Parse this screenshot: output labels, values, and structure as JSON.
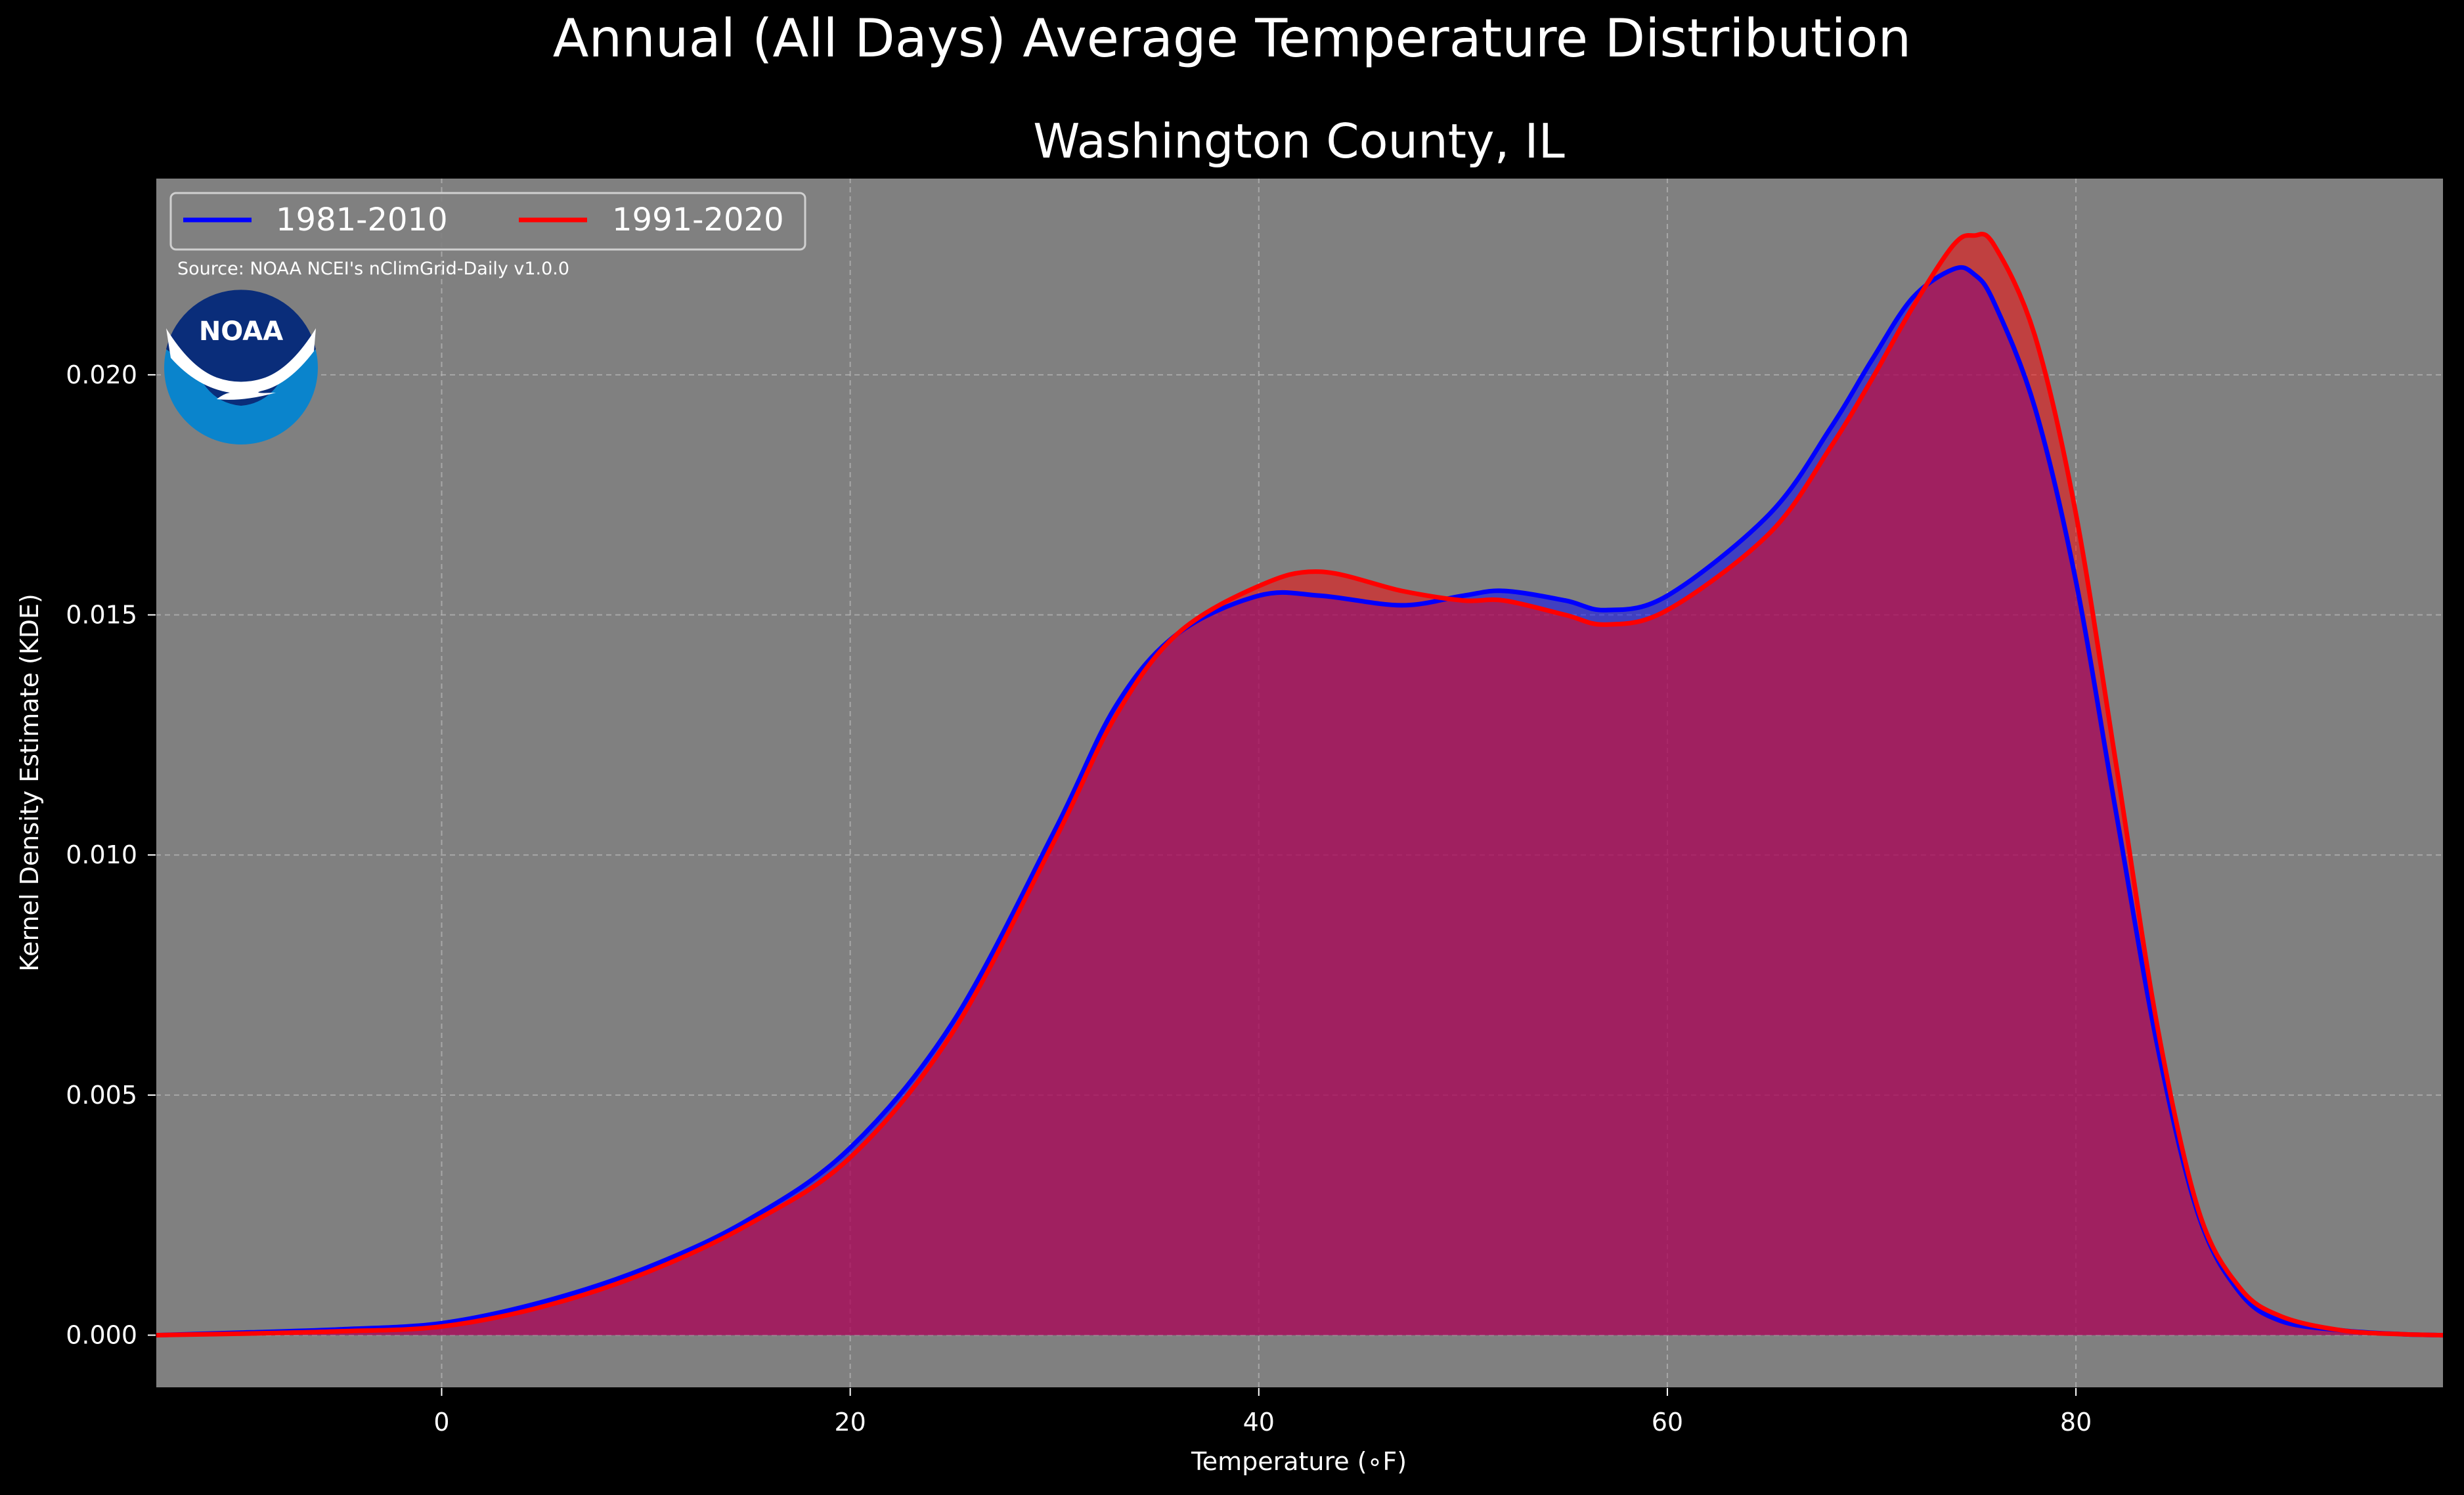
{
  "figure_title": "Annual (All Days) Average Temperature Distribution",
  "source_note": "Source: NOAA NCEI's nClimGrid-Daily v1.0.0",
  "logo_text": "NOAA",
  "colors": {
    "background": "#000000",
    "plot_background": "#808080",
    "series_1981_2010": "#0000ff",
    "series_1991_2020": "#ff0000",
    "overlap_fill": "#9e1f5c",
    "text": "#ffffff",
    "grid": "#b8b8b8"
  },
  "chart_data": {
    "type": "area",
    "title": "Washington County, IL",
    "xlabel": "Temperature (∘F)",
    "ylabel": "Kernel Density Estimate (KDE)",
    "xlim": [
      -14,
      98
    ],
    "ylim": [
      -0.0011,
      0.0241
    ],
    "xticks": [
      0,
      20,
      40,
      60,
      80
    ],
    "yticks": [
      0.0,
      0.005,
      0.01,
      0.015,
      0.02
    ],
    "xtick_labels": [
      "0",
      "20",
      "40",
      "60",
      "80"
    ],
    "ytick_labels": [
      "0.000",
      "0.005",
      "0.010",
      "0.015",
      "0.020"
    ],
    "grid": true,
    "legend_position": "top-left",
    "x": [
      -14,
      -10,
      -5,
      0,
      5,
      10,
      15,
      20,
      25,
      30,
      33,
      36,
      40,
      43,
      47,
      50,
      52,
      55,
      57,
      60,
      65,
      68,
      70,
      72,
      74,
      75,
      76,
      78,
      80,
      82,
      84,
      86,
      88,
      90,
      93,
      96,
      98
    ],
    "series": [
      {
        "name": "1981-2010",
        "values": [
          0.0,
          5e-05,
          0.00012,
          0.00025,
          0.0007,
          0.0014,
          0.0024,
          0.0039,
          0.0065,
          0.0105,
          0.0131,
          0.0146,
          0.0154,
          0.0154,
          0.0152,
          0.0154,
          0.0155,
          0.0153,
          0.0151,
          0.0154,
          0.0171,
          0.0189,
          0.0203,
          0.0216,
          0.0222,
          0.0221,
          0.0215,
          0.0193,
          0.0157,
          0.0108,
          0.006,
          0.0025,
          0.0009,
          0.0003,
          0.0001,
          2e-05,
          0.0
        ]
      },
      {
        "name": "1991-2020",
        "values": [
          0.0,
          3e-05,
          8e-05,
          0.00018,
          0.0006,
          0.0013,
          0.0023,
          0.0037,
          0.0063,
          0.0103,
          0.0129,
          0.0146,
          0.0156,
          0.0159,
          0.0155,
          0.0153,
          0.0153,
          0.015,
          0.0148,
          0.0151,
          0.0167,
          0.0185,
          0.0199,
          0.0214,
          0.0227,
          0.0229,
          0.0227,
          0.0208,
          0.0171,
          0.0118,
          0.0064,
          0.0026,
          0.001,
          0.0004,
          0.0001,
          2e-05,
          0.0
        ]
      }
    ]
  }
}
